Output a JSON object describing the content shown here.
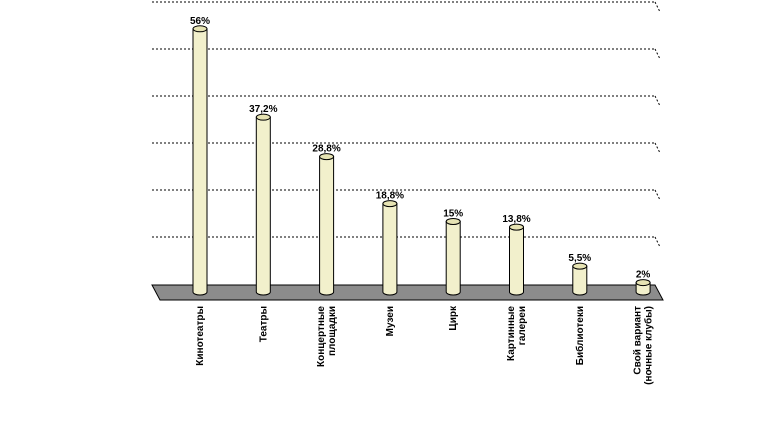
{
  "chart_data": {
    "type": "bar",
    "style": "3d-cylinder",
    "categories": [
      "Кинотеатры",
      "Театры",
      "Концертные площадки",
      "Музеи",
      "Цирк",
      "Картинные галереи",
      "Библиотеки",
      "Свой вариант (ночные клубы)"
    ],
    "category_label_lines": [
      [
        "Кинотеатры"
      ],
      [
        "Театры"
      ],
      [
        "Концертные",
        "площадки"
      ],
      [
        "Музеи"
      ],
      [
        "Цирк"
      ],
      [
        "Картинные",
        "галереи"
      ],
      [
        "Библиотеки"
      ],
      [
        "Свой вариант",
        "(ночные клубы)"
      ]
    ],
    "values": [
      56,
      37.2,
      28.8,
      18.8,
      15,
      13.8,
      5.5,
      2
    ],
    "data_labels": [
      "56%",
      "37,2%",
      "28,8%",
      "18,8%",
      "15%",
      "13,8%",
      "5,5%",
      "2%"
    ],
    "ylim": [
      0,
      60
    ],
    "gridlines": true,
    "grid_style": "dashed",
    "title": "",
    "xlabel": "",
    "ylabel": "",
    "colors": {
      "bar_fill": "#f2f0cc",
      "bar_top": "#e6e3b3",
      "bar_stroke": "#000000",
      "floor": "#8c8c8c",
      "grid": "#000000"
    }
  }
}
